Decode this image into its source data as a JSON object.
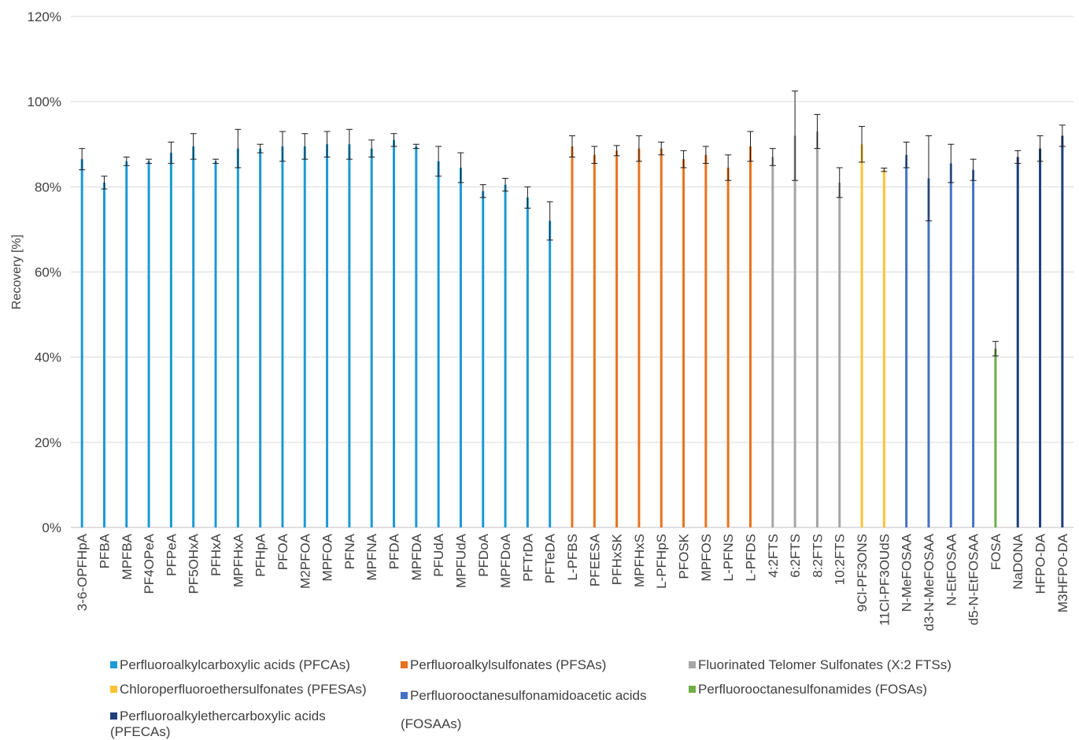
{
  "chart_data": {
    "type": "bar",
    "ylabel": "Recovery [%]",
    "xlabel": "",
    "ylim": [
      0,
      120
    ],
    "yticks": [
      0,
      20,
      40,
      60,
      80,
      100,
      120
    ],
    "ytick_labels": [
      "0%",
      "20%",
      "40%",
      "60%",
      "80%",
      "100%",
      "120%"
    ],
    "grid": "horizontal",
    "legend_position": "bottom",
    "groups": [
      {
        "name": "Perfluoroalkylcarboxylic acids (PFCAs)",
        "color": "#1a9ad6"
      },
      {
        "name": "Perfluoroalkylsulfonates (PFSAs)",
        "color": "#e8731e"
      },
      {
        "name": "Fluorinated Telomer Sulfonates (X:2 FTSs)",
        "color": "#a6a6a6"
      },
      {
        "name": "Chloroperfluoroethersulfonates (PFESAs)",
        "color": "#ffc233"
      },
      {
        "name": "Perfluorooctanesulfonamidoacetic acids (FOSAAs)",
        "color": "#4472c4"
      },
      {
        "name": "Perfluorooctanesulfonamides (FOSAs)",
        "color": "#70ad47"
      },
      {
        "name": "Perfluoroalkylethercarboxylic acids (PFECAs)",
        "color": "#1f3f7a"
      }
    ],
    "categories": [
      "3-6-OPFHpA",
      "PFBA",
      "MPFBA",
      "PF4OPeA",
      "PFPeA",
      "PF5OHxA",
      "PFHxA",
      "MPFHxA",
      "PFHpA",
      "PFOA",
      "M2PFOA",
      "MPFOA",
      "PFNA",
      "MPFNA",
      "PFDA",
      "MPFDA",
      "PFUdA",
      "MPFUdA",
      "PFDoA",
      "MPFDoA",
      "PFTrDA",
      "PFTeDA",
      "L-PFBS",
      "PFEESA",
      "PFHxSK",
      "MPFHxS",
      "L-PFHpS",
      "PFOSK",
      "MPFOS",
      "L-PFNS",
      "L-PFDS",
      "4:2FTS",
      "6:2FTS",
      "8:2FTS",
      "10:2FTS",
      "9Cl-PF3ONS",
      "11Cl-PF3OUdS",
      "N-MeFOSAA",
      "d3-N-MeFOSAA",
      "N-EtFOSAA",
      "d5-N-EtFOSAA",
      "FOSA",
      "NaDONA",
      "HFPO-DA",
      "M3HFPO-DA"
    ],
    "values": [
      86.5,
      81.0,
      86.0,
      86.0,
      88.0,
      89.5,
      86.0,
      89.0,
      89.0,
      89.5,
      89.5,
      90.0,
      90.0,
      89.0,
      91.0,
      89.5,
      86.0,
      84.5,
      79.0,
      80.5,
      77.5,
      72.0,
      89.5,
      87.5,
      88.5,
      89.0,
      89.0,
      86.5,
      87.5,
      84.5,
      89.5,
      87.0,
      92.0,
      93.0,
      81.0,
      90.0,
      84.0,
      87.5,
      82.0,
      85.5,
      84.0,
      42.0,
      87.0,
      89.0,
      92.0
    ],
    "errors": [
      2.5,
      1.5,
      1.0,
      0.5,
      2.5,
      3.0,
      0.5,
      4.5,
      1.0,
      3.5,
      3.0,
      3.0,
      3.5,
      2.0,
      1.5,
      0.5,
      3.5,
      3.5,
      1.5,
      1.5,
      2.5,
      4.5,
      2.5,
      2.0,
      1.2,
      3.0,
      1.5,
      2.0,
      2.0,
      3.0,
      3.5,
      2.0,
      10.5,
      4.0,
      3.5,
      4.2,
      0.4,
      3.0,
      10.0,
      4.5,
      2.5,
      1.7,
      1.5,
      3.0,
      2.5
    ],
    "groups_index": [
      0,
      0,
      0,
      0,
      0,
      0,
      0,
      0,
      0,
      0,
      0,
      0,
      0,
      0,
      0,
      0,
      0,
      0,
      0,
      0,
      0,
      0,
      1,
      1,
      1,
      1,
      1,
      1,
      1,
      1,
      1,
      2,
      2,
      2,
      2,
      3,
      3,
      4,
      4,
      4,
      4,
      5,
      6,
      6,
      6
    ]
  }
}
